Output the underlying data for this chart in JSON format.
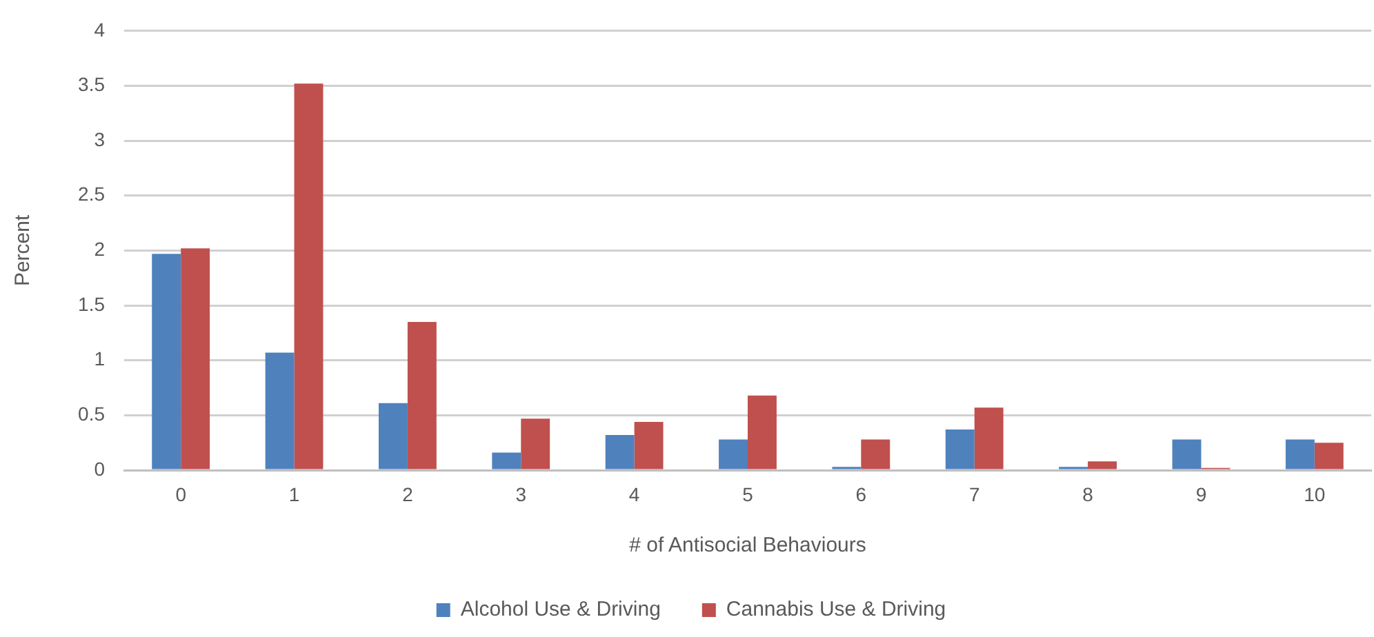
{
  "chart_data": {
    "type": "bar",
    "xlabel": "# of Antisocial Behaviours",
    "ylabel": "Percent",
    "categories": [
      "0",
      "1",
      "2",
      "3",
      "4",
      "5",
      "6",
      "7",
      "8",
      "9",
      "10"
    ],
    "series": [
      {
        "name": "Alcohol Use & Driving",
        "color": "#4f81bd",
        "values": [
          1.97,
          1.07,
          0.61,
          0.16,
          0.32,
          0.28,
          0.03,
          0.37,
          0.03,
          0.28,
          0.28
        ]
      },
      {
        "name": "Cannabis Use & Driving",
        "color": "#c0504d",
        "values": [
          2.02,
          3.52,
          1.35,
          0.47,
          0.44,
          0.68,
          0.28,
          0.57,
          0.08,
          0.02,
          0.25
        ]
      }
    ],
    "ylim": [
      0,
      4
    ],
    "yticks": [
      0,
      0.5,
      1,
      1.5,
      2,
      2.5,
      3,
      3.5,
      4
    ],
    "grid": "y",
    "legend": "bottom"
  }
}
